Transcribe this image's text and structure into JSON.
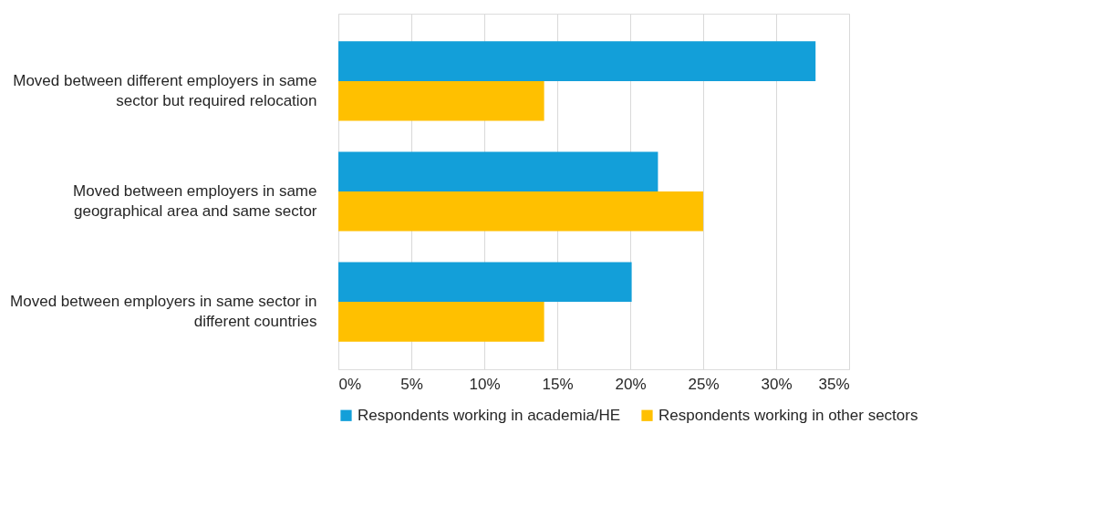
{
  "chart_data": {
    "type": "bar",
    "orientation": "horizontal",
    "categories": [
      "Moved between different employers in same sector but required relocation",
      "Moved between employers in same geographical area and same sector",
      "Moved between employers in same sector in different countries"
    ],
    "series": [
      {
        "name": "Respondents working in academia/HE",
        "color": "#139fd9",
        "values": [
          32.7,
          21.9,
          20.1
        ]
      },
      {
        "name": "Respondents working in other sectors",
        "color": "#ffc000",
        "values": [
          14.1,
          25.0,
          14.1
        ]
      }
    ],
    "xlim": [
      0,
      35
    ],
    "xticks": [
      {
        "value": 0,
        "label": "0%"
      },
      {
        "value": 5,
        "label": "5%"
      },
      {
        "value": 10,
        "label": "10%"
      },
      {
        "value": 15,
        "label": "15%"
      },
      {
        "value": 20,
        "label": "20%"
      },
      {
        "value": 25,
        "label": "25%"
      },
      {
        "value": 30,
        "label": "30%"
      },
      {
        "value": 35,
        "label": "35%"
      }
    ],
    "grid": "x",
    "legend": "bottom"
  }
}
